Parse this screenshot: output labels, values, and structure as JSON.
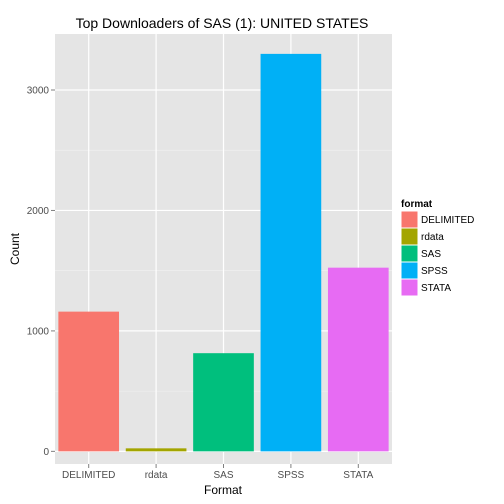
{
  "chart_data": {
    "type": "bar",
    "title": "Top Downloaders of SAS (1):  UNITED STATES",
    "xlabel": "Format",
    "ylabel": "Count",
    "categories": [
      "DELIMITED",
      "rdata",
      "SAS",
      "SPSS",
      "STATA"
    ],
    "values": [
      1160,
      25,
      815,
      3300,
      1525
    ],
    "colors": [
      "#F8766D",
      "#A3A500",
      "#00BF7D",
      "#00B0F6",
      "#E76BF3"
    ],
    "ylim": [
      -105,
      3465
    ],
    "yticks": [
      0,
      1000,
      2000,
      3000
    ],
    "grid": true,
    "panel_background": "#E5E5E5",
    "legend": {
      "title": "format",
      "position": "right",
      "entries": [
        "DELIMITED",
        "rdata",
        "SAS",
        "SPSS",
        "STATA"
      ]
    }
  }
}
